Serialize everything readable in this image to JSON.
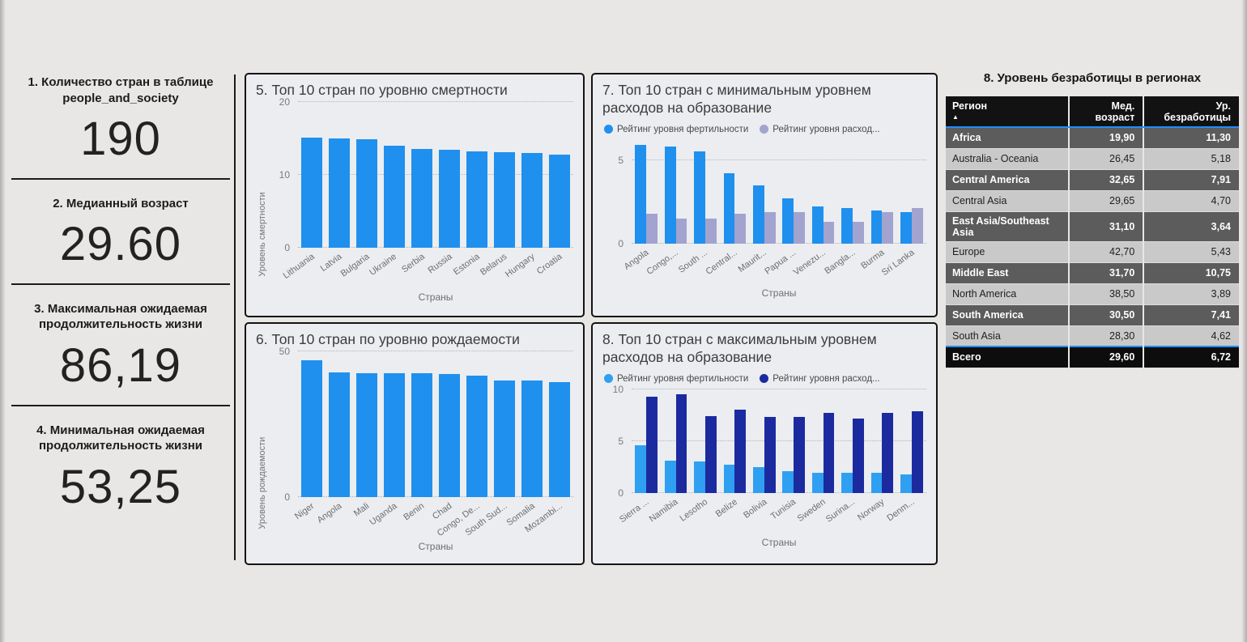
{
  "accent_blue": "#1e8fff",
  "kpis": [
    {
      "title": "1. Количество стран в таблице people_and_society",
      "value": "190"
    },
    {
      "title": "2. Медианный возраст",
      "value": "29.60"
    },
    {
      "title": "3. Максимальная ожидаемая продолжительность жизни",
      "value": "86,19"
    },
    {
      "title": "4. Минимальная ожидаемая продолжительность жизни",
      "value": "53,25"
    }
  ],
  "chart_data": [
    {
      "type": "bar",
      "title": "5. Топ 10 стран по уровню смертности",
      "xlabel": "Страны",
      "ylabel": "Уровень смертности",
      "ylim": [
        0,
        20
      ],
      "yticks": [
        0,
        10,
        20
      ],
      "grid": "dotted",
      "categories": [
        "Lithuania",
        "Latvia",
        "Bulgaria",
        "Ukraine",
        "Serbia",
        "Russia",
        "Estonia",
        "Belarus",
        "Hungary",
        "Croatia"
      ],
      "values": [
        15.2,
        15.0,
        14.9,
        14.1,
        13.6,
        13.5,
        13.3,
        13.2,
        13.0,
        12.8
      ],
      "bar_color": "#1f90ee"
    },
    {
      "type": "bar",
      "title": "6. Топ 10 стран по уровню рождаемости",
      "xlabel": "Страны",
      "ylabel": "Уровень рождаемости",
      "ylim": [
        0,
        50
      ],
      "yticks": [
        0,
        50
      ],
      "grid": "dotted",
      "categories": [
        "Niger",
        "Angola",
        "Mali",
        "Uganda",
        "Benin",
        "Chad",
        "Congo, De...",
        "South Sud...",
        "Somalia",
        "Mozambi..."
      ],
      "values": [
        47.1,
        43.0,
        42.7,
        42.6,
        42.5,
        42.3,
        41.8,
        40.2,
        40.0,
        39.6
      ],
      "bar_color": "#1f90ee"
    },
    {
      "type": "bar",
      "title": "7. Топ 10 стран с минимальным уровнем расходов на образование",
      "xlabel": "Страны",
      "ylabel": "",
      "ylim": [
        0,
        6.2
      ],
      "yticks": [
        0,
        5
      ],
      "grid": "dotted",
      "legend_position": "top",
      "categories": [
        "Angola",
        "Congo,...",
        "South ...",
        "Central...",
        "Maurit...",
        "Papua ...",
        "Venezu...",
        "Bangla...",
        "Burma",
        "Sri Lanka"
      ],
      "series": [
        {
          "name": "Рейтинг уровня фертильности",
          "color": "#1f90ee",
          "values": [
            5.9,
            5.8,
            5.5,
            4.2,
            3.5,
            2.7,
            2.2,
            2.1,
            2.0,
            1.9
          ]
        },
        {
          "name": "Рейтинг уровня расход...",
          "color": "#a2a3cf",
          "values": [
            1.8,
            1.5,
            1.5,
            1.8,
            1.9,
            1.9,
            1.3,
            1.3,
            1.9,
            2.1
          ]
        }
      ]
    },
    {
      "type": "bar",
      "title": "8. Топ 10 стран с максимальным уровнем расходов на образование",
      "xlabel": "Страны",
      "ylabel": "",
      "ylim": [
        0,
        10
      ],
      "yticks": [
        0,
        5,
        10
      ],
      "grid": "dotted",
      "legend_position": "top",
      "categories": [
        "Sierra ...",
        "Namibia",
        "Lesotho",
        "Belize",
        "Bolivia",
        "Tunisia",
        "Sweden",
        "Surina...",
        "Norway",
        "Denm..."
      ],
      "series": [
        {
          "name": "Рейтинг уровня фертильности",
          "color": "#2f9ff2",
          "values": [
            4.6,
            3.1,
            3.0,
            2.7,
            2.5,
            2.1,
            1.9,
            1.9,
            1.9,
            1.8
          ]
        },
        {
          "name": "Рейтинг уровня расход...",
          "color": "#1c2aa0",
          "values": [
            9.3,
            9.5,
            7.4,
            8.0,
            7.3,
            7.3,
            7.7,
            7.2,
            7.7,
            7.9
          ]
        }
      ]
    }
  ],
  "table": {
    "title": "8. Уровень безработицы в регионах",
    "columns": [
      "Регион",
      "Мед. возраст",
      "Ур. безработицы"
    ],
    "sort_icon": "▲",
    "rows": [
      [
        "Africa",
        "19,90",
        "11,30"
      ],
      [
        "Australia - Oceania",
        "26,45",
        "5,18"
      ],
      [
        "Central America",
        "32,65",
        "7,91"
      ],
      [
        "Central Asia",
        "29,65",
        "4,70"
      ],
      [
        "East Asia/Southeast Asia",
        "31,10",
        "3,64"
      ],
      [
        "Europe",
        "42,70",
        "5,43"
      ],
      [
        "Middle East",
        "31,70",
        "10,75"
      ],
      [
        "North America",
        "38,50",
        "3,89"
      ],
      [
        "South America",
        "30,50",
        "7,41"
      ],
      [
        "South Asia",
        "28,30",
        "4,62"
      ]
    ],
    "total": [
      "Всего",
      "29,60",
      "6,72"
    ]
  }
}
